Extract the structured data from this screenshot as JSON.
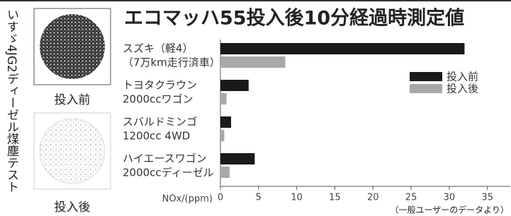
{
  "chart_data": {
    "type": "hbar",
    "title": "エコマッハ55投入後10分経過時測定値",
    "categories": [
      [
        "スズキ（軽4）",
        "（7万km走行済車）"
      ],
      [
        "トヨタクラウン",
        "2000ccワゴン"
      ],
      [
        "スバルドミンゴ",
        "1200cc 4WD"
      ],
      [
        "ハイエースワゴン",
        "2000ccディーゼル"
      ]
    ],
    "series": [
      {
        "name": "投入前",
        "color": "#1a1a1a",
        "values": [
          32,
          3.7,
          1.4,
          4.5
        ]
      },
      {
        "name": "投入後",
        "color": "#a8a8a8",
        "values": [
          8.5,
          0.8,
          0.5,
          1.2
        ]
      }
    ],
    "x_label": "NOx/(ppm)",
    "xlim": [
      0,
      38
    ],
    "xticks": [
      0,
      5,
      10,
      15,
      20,
      25,
      30,
      35
    ],
    "note": "（一般ユーザーのデータより）",
    "legend": "right"
  },
  "side_panel": {
    "title": "いすゞ4JG2ディーゼル煤塵テスト",
    "images": [
      {
        "label": "投入前"
      },
      {
        "label": "投入後"
      }
    ]
  }
}
